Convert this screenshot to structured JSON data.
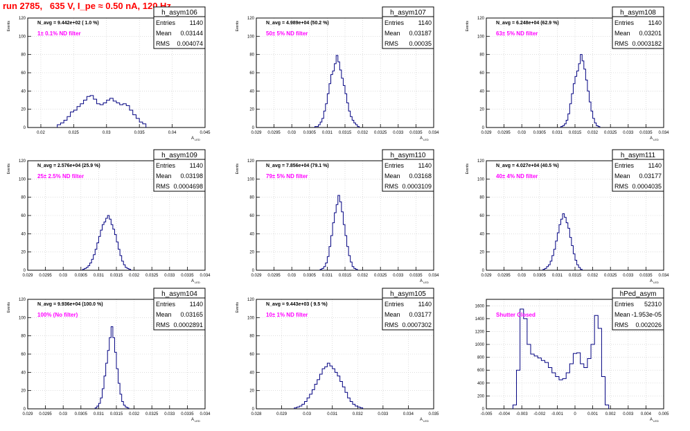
{
  "page": {
    "title": "run 2785,   635 V, I_pe ≈ 0.50 nA, 120 Hz"
  },
  "colors": {
    "title": "#ff0000",
    "histogram": "#000080",
    "annotation": "#ff00ff",
    "grid": "#c8c8c8",
    "axis": "#000000"
  },
  "chart_data": [
    {
      "type": "bar",
      "hist_name": "h_asym106",
      "stats": {
        "entries_label": "Entries",
        "entries": "1140",
        "mean_label": "Mean",
        "mean": "0.03144",
        "rms_label": "RMS",
        "rms": "0.004074"
      },
      "navg": "N_avg = 9.442e+02 ( 1.0 %)",
      "filter": "1± 0.1% ND filter",
      "ylabel": "Events",
      "xlabel": "A",
      "xlabel_sub": "LED",
      "xlim": [
        0.018,
        0.045
      ],
      "ylim": [
        0,
        120
      ],
      "xticks": [
        0.02,
        0.025,
        0.03,
        0.035,
        0.04,
        0.045
      ],
      "xtick_labels": [
        "0.02",
        "0.025",
        "0.03",
        "0.035",
        "0.04",
        "0.045"
      ],
      "yticks": [
        0,
        20,
        40,
        60,
        80,
        100,
        120
      ],
      "ytick_labels": [
        "0",
        "20",
        "40",
        "60",
        "80",
        "100",
        "120"
      ],
      "bin_start": 0.0225,
      "bin_width": 0.0005,
      "values": [
        3,
        5,
        8,
        12,
        17,
        19,
        23,
        26,
        30,
        34,
        35,
        31,
        26,
        25,
        27,
        30,
        32,
        29,
        27,
        25,
        26,
        24,
        19,
        14,
        10,
        6,
        4
      ]
    },
    {
      "type": "bar",
      "hist_name": "h_asym107",
      "stats": {
        "entries_label": "Entries",
        "entries": "1140",
        "mean_label": "Mean",
        "mean": "0.03187",
        "rms_label": "RMS",
        "rms": "0.00035"
      },
      "navg": "N_avg = 4.989e+04 (50.2 %)",
      "filter": "50± 5% ND filter",
      "ylabel": "Events",
      "xlabel": "A",
      "xlabel_sub": "LED",
      "xlim": [
        0.029,
        0.034
      ],
      "ylim": [
        0,
        120
      ],
      "xticks": [
        0.029,
        0.0295,
        0.03,
        0.0305,
        0.031,
        0.0315,
        0.032,
        0.0325,
        0.033,
        0.0335,
        0.034
      ],
      "xtick_labels": [
        "0.029",
        "0.0295",
        "0.03",
        "0.0305",
        "0.031",
        "0.0315",
        "0.032",
        "0.0325",
        "0.033",
        "0.0335",
        "0.034"
      ],
      "yticks": [
        0,
        20,
        40,
        60,
        80,
        100,
        120
      ],
      "ytick_labels": [
        "0",
        "20",
        "40",
        "60",
        "80",
        "100",
        "120"
      ],
      "bin_start": 0.03065,
      "bin_width": 5e-05,
      "values": [
        1,
        1,
        3,
        6,
        10,
        18,
        26,
        37,
        48,
        58,
        62,
        70,
        79,
        72,
        63,
        54,
        46,
        37,
        27,
        18,
        12,
        8,
        5,
        3,
        1
      ]
    },
    {
      "type": "bar",
      "hist_name": "h_asym108",
      "stats": {
        "entries_label": "Entries",
        "entries": "1140",
        "mean_label": "Mean",
        "mean": "0.03201",
        "rms_label": "RMS",
        "rms": "0.0003182"
      },
      "navg": "N_avg = 6.248e+04 (62.9 %)",
      "filter": "63± 5% ND filter",
      "ylabel": "Events",
      "xlabel": "A",
      "xlabel_sub": "LED",
      "xlim": [
        0.029,
        0.034
      ],
      "ylim": [
        0,
        120
      ],
      "xticks": [
        0.029,
        0.0295,
        0.03,
        0.0305,
        0.031,
        0.0315,
        0.032,
        0.0325,
        0.033,
        0.0335,
        0.034
      ],
      "xtick_labels": [
        "0.029",
        "0.0295",
        "0.03",
        "0.0305",
        "0.031",
        "0.0315",
        "0.032",
        "0.0325",
        "0.033",
        "0.0335",
        "0.034"
      ],
      "yticks": [
        0,
        20,
        40,
        60,
        80,
        100,
        120
      ],
      "ytick_labels": [
        "0",
        "20",
        "40",
        "60",
        "80",
        "100",
        "120"
      ],
      "bin_start": 0.0311,
      "bin_width": 5e-05,
      "values": [
        1,
        2,
        4,
        8,
        15,
        26,
        37,
        48,
        56,
        62,
        70,
        80,
        73,
        64,
        52,
        40,
        28,
        18,
        10,
        5,
        2,
        1
      ]
    },
    {
      "type": "bar",
      "hist_name": "h_asym109",
      "stats": {
        "entries_label": "Entries",
        "entries": "1140",
        "mean_label": "Mean",
        "mean": "0.03198",
        "rms_label": "RMS",
        "rms": "0.0004698"
      },
      "navg": "N_avg = 2.576e+04 (25.9 %)",
      "filter": "25± 2.5% ND filter",
      "ylabel": "Events",
      "xlabel": "A",
      "xlabel_sub": "LED",
      "xlim": [
        0.029,
        0.034
      ],
      "ylim": [
        0,
        120
      ],
      "xticks": [
        0.029,
        0.0295,
        0.03,
        0.0305,
        0.031,
        0.0315,
        0.032,
        0.0325,
        0.033,
        0.0335,
        0.034
      ],
      "xtick_labels": [
        "0.029",
        "0.0295",
        "0.03",
        "0.0305",
        "0.031",
        "0.0315",
        "0.032",
        "0.0325",
        "0.033",
        "0.0335",
        "0.034"
      ],
      "yticks": [
        0,
        20,
        40,
        60,
        80,
        100,
        120
      ],
      "ytick_labels": [
        "0",
        "20",
        "40",
        "60",
        "80",
        "100",
        "120"
      ],
      "bin_start": 0.03055,
      "bin_width": 5e-05,
      "values": [
        1,
        2,
        3,
        5,
        8,
        12,
        17,
        23,
        30,
        37,
        44,
        50,
        53,
        57,
        60,
        56,
        50,
        45,
        39,
        31,
        23,
        16,
        10,
        6,
        3,
        2,
        1
      ]
    },
    {
      "type": "bar",
      "hist_name": "h_asym110",
      "stats": {
        "entries_label": "Entries",
        "entries": "1140",
        "mean_label": "Mean",
        "mean": "0.03168",
        "rms_label": "RMS",
        "rms": "0.0003109"
      },
      "navg": "N_avg = 7.856e+04 (79.1 %)",
      "filter": "79± 5% ND filter",
      "ylabel": "Events",
      "xlabel": "A",
      "xlabel_sub": "LED",
      "xlim": [
        0.029,
        0.034
      ],
      "ylim": [
        0,
        120
      ],
      "xticks": [
        0.029,
        0.0295,
        0.03,
        0.0305,
        0.031,
        0.0315,
        0.032,
        0.0325,
        0.033,
        0.0335,
        0.034
      ],
      "xtick_labels": [
        "0.029",
        "0.0295",
        "0.03",
        "0.0305",
        "0.031",
        "0.0315",
        "0.032",
        "0.0325",
        "0.033",
        "0.0335",
        "0.034"
      ],
      "yticks": [
        0,
        20,
        40,
        60,
        80,
        100,
        120
      ],
      "ytick_labels": [
        "0",
        "20",
        "40",
        "60",
        "80",
        "100",
        "120"
      ],
      "bin_start": 0.0308,
      "bin_width": 5e-05,
      "values": [
        1,
        2,
        4,
        8,
        15,
        26,
        38,
        52,
        63,
        72,
        82,
        75,
        64,
        50,
        38,
        26,
        16,
        9,
        4,
        2,
        1
      ]
    },
    {
      "type": "bar",
      "hist_name": "h_asym111",
      "stats": {
        "entries_label": "Entries",
        "entries": "1140",
        "mean_label": "Mean",
        "mean": "0.03177",
        "rms_label": "RMS",
        "rms": "0.0004035"
      },
      "navg": "N_avg = 4.027e+04 (40.5 %)",
      "filter": "40± 4% ND filter",
      "ylabel": "Events",
      "xlabel": "A",
      "xlabel_sub": "LED",
      "xlim": [
        0.029,
        0.034
      ],
      "ylim": [
        0,
        120
      ],
      "xticks": [
        0.029,
        0.0295,
        0.03,
        0.0305,
        0.031,
        0.0315,
        0.032,
        0.0325,
        0.033,
        0.0335,
        0.034
      ],
      "xtick_labels": [
        "0.029",
        "0.0295",
        "0.03",
        "0.0305",
        "0.031",
        "0.0315",
        "0.032",
        "0.0325",
        "0.033",
        "0.0335",
        "0.034"
      ],
      "yticks": [
        0,
        20,
        40,
        60,
        80,
        100,
        120
      ],
      "ytick_labels": [
        "0",
        "20",
        "40",
        "60",
        "80",
        "100",
        "120"
      ],
      "bin_start": 0.0306,
      "bin_width": 5e-05,
      "values": [
        1,
        2,
        4,
        6,
        10,
        16,
        23,
        32,
        41,
        50,
        56,
        62,
        58,
        52,
        46,
        36,
        27,
        18,
        11,
        6,
        3,
        1
      ]
    },
    {
      "type": "bar",
      "hist_name": "h_asym104",
      "stats": {
        "entries_label": "Entries",
        "entries": "1140",
        "mean_label": "Mean",
        "mean": "0.03165",
        "rms_label": "RMS",
        "rms": "0.0002891"
      },
      "navg": "N_avg = 9.936e+04 (100.0 %)",
      "filter": "100% (No filter)",
      "ylabel": "Events",
      "xlabel": "A",
      "xlabel_sub": "LED",
      "xlim": [
        0.029,
        0.034
      ],
      "ylim": [
        0,
        120
      ],
      "xticks": [
        0.029,
        0.0295,
        0.03,
        0.0305,
        0.031,
        0.0315,
        0.032,
        0.0325,
        0.033,
        0.0335,
        0.034
      ],
      "xtick_labels": [
        "0.029",
        "0.0295",
        "0.03",
        "0.0305",
        "0.031",
        "0.0315",
        "0.032",
        "0.0325",
        "0.033",
        "0.0335",
        "0.034"
      ],
      "yticks": [
        0,
        20,
        40,
        60,
        80,
        100,
        120
      ],
      "ytick_labels": [
        "0",
        "20",
        "40",
        "60",
        "80",
        "100",
        "120"
      ],
      "bin_start": 0.0309,
      "bin_width": 5e-05,
      "values": [
        1,
        3,
        6,
        12,
        22,
        36,
        50,
        64,
        78,
        90,
        78,
        62,
        44,
        28,
        16,
        8,
        4,
        2,
        1
      ]
    },
    {
      "type": "bar",
      "hist_name": "h_asym105",
      "stats": {
        "entries_label": "Entries",
        "entries": "1140",
        "mean_label": "Mean",
        "mean": "0.03177",
        "rms_label": "RMS",
        "rms": "0.0007302"
      },
      "navg": "N_avg = 9.443e+03 ( 9.5 %)",
      "filter": "10± 1% ND filter",
      "ylabel": "Events",
      "xlabel": "A",
      "xlabel_sub": "LED",
      "xlim": [
        0.028,
        0.035
      ],
      "ylim": [
        0,
        120
      ],
      "xticks": [
        0.028,
        0.029,
        0.03,
        0.031,
        0.032,
        0.033,
        0.034,
        0.035
      ],
      "xtick_labels": [
        "0.028",
        "0.029",
        "0.03",
        "0.031",
        "0.032",
        "0.033",
        "0.034",
        "0.035"
      ],
      "yticks": [
        0,
        20,
        40,
        60,
        80,
        100,
        120
      ],
      "ytick_labels": [
        "0",
        "20",
        "40",
        "60",
        "80",
        "100",
        "120"
      ],
      "bin_start": 0.0295,
      "bin_width": 0.0001,
      "values": [
        1,
        2,
        3,
        5,
        8,
        12,
        16,
        21,
        27,
        32,
        38,
        44,
        46,
        50,
        47,
        44,
        40,
        36,
        30,
        24,
        18,
        12,
        8,
        5,
        3,
        2,
        1
      ]
    },
    {
      "type": "bar",
      "hist_name": "hPed_asym",
      "stats": {
        "entries_label": "Entries",
        "entries": "52310",
        "mean_label": "Mean",
        "mean": "-1.953e-05",
        "rms_label": "RMS",
        "rms": "0.002026"
      },
      "navg": "",
      "filter": "Shutter Closed",
      "ylabel": "",
      "xlabel": "A",
      "xlabel_sub": "LED",
      "xlim": [
        -0.005,
        0.005
      ],
      "ylim": [
        0,
        1700
      ],
      "xticks": [
        -0.005,
        -0.004,
        -0.003,
        -0.002,
        -0.001,
        0,
        0.001,
        0.002,
        0.003,
        0.004,
        0.005
      ],
      "xtick_labels": [
        "-0.005",
        "-0.004",
        "-0.003",
        "-0.002",
        "-0.001",
        "0",
        "0.001",
        "0.002",
        "0.003",
        "0.004",
        "0.005"
      ],
      "yticks": [
        0,
        200,
        400,
        600,
        800,
        1000,
        1200,
        1400,
        1600
      ],
      "ytick_labels": [
        "0",
        "200",
        "400",
        "600",
        "800",
        "1000",
        "1200",
        "1400",
        "1600"
      ],
      "bin_start": -0.0035,
      "bin_width": 0.0002,
      "values": [
        60,
        600,
        1550,
        1400,
        1000,
        850,
        820,
        790,
        750,
        720,
        640,
        560,
        500,
        450,
        470,
        560,
        700,
        860,
        870,
        700,
        640,
        780,
        1000,
        1450,
        1250,
        500,
        60
      ]
    }
  ]
}
